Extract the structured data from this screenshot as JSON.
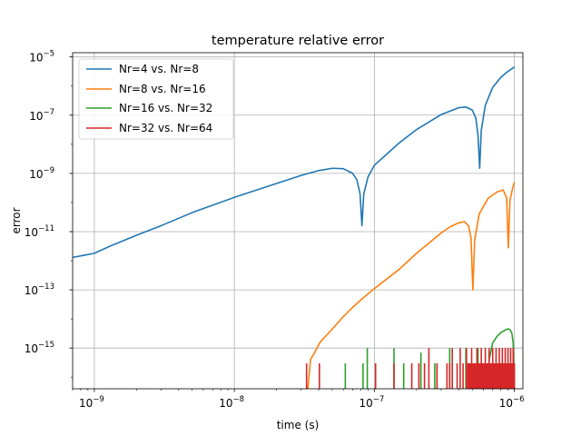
{
  "chart_data": {
    "type": "line",
    "title": "temperature relative error",
    "xlabel": "time (s)",
    "ylabel": "error",
    "xscale": "log",
    "yscale": "log",
    "xlim": [
      7e-10,
      1.15e-06
    ],
    "ylim": [
      4e-17,
      1.4e-05
    ],
    "grid": true,
    "legend_position": "upper left",
    "x_ticks": [
      {
        "value": 1e-09,
        "base": "10",
        "exp": "−9"
      },
      {
        "value": 1e-08,
        "base": "10",
        "exp": "−8"
      },
      {
        "value": 1e-07,
        "base": "10",
        "exp": "−7"
      },
      {
        "value": 1e-06,
        "base": "10",
        "exp": "−6"
      }
    ],
    "y_ticks": [
      {
        "value": 1e-15,
        "base": "10",
        "exp": "−15"
      },
      {
        "value": 1e-13,
        "base": "10",
        "exp": "−13"
      },
      {
        "value": 1e-11,
        "base": "10",
        "exp": "−11"
      },
      {
        "value": 1e-09,
        "base": "10",
        "exp": "−9"
      },
      {
        "value": 1e-07,
        "base": "10",
        "exp": "−7"
      },
      {
        "value": 1e-05,
        "base": "10",
        "exp": "−5"
      }
    ],
    "series": [
      {
        "name": "Nr=4 vs. Nr=8",
        "color": "#1f77b4",
        "points": [
          [
            7e-10,
            1.3e-12
          ],
          [
            8.5e-10,
            1.55e-12
          ],
          [
            1e-09,
            1.8e-12
          ],
          [
            1.3e-09,
            3.2e-12
          ],
          [
            2e-09,
            7.5e-12
          ],
          [
            3e-09,
            1.6e-11
          ],
          [
            5e-09,
            4.5e-11
          ],
          [
            1e-08,
            1.5e-10
          ],
          [
            2e-08,
            4.5e-10
          ],
          [
            3e-08,
            8.5e-10
          ],
          [
            4e-08,
            1.25e-09
          ],
          [
            5e-08,
            1.5e-09
          ],
          [
            6e-08,
            1.45e-09
          ],
          [
            7e-08,
            1e-09
          ],
          [
            7.5e-08,
            6e-10
          ],
          [
            7.9e-08,
            2e-10
          ],
          [
            8.15e-08,
            1.6e-11
          ],
          [
            8.4e-08,
            2e-10
          ],
          [
            9e-08,
            7.5e-10
          ],
          [
            1e-07,
            1.9e-09
          ],
          [
            1.5e-07,
            1.1e-08
          ],
          [
            2e-07,
            3.2e-08
          ],
          [
            3e-07,
            1.05e-07
          ],
          [
            4e-07,
            1.8e-07
          ],
          [
            4.5e-07,
            1.9e-07
          ],
          [
            5e-07,
            1.5e-07
          ],
          [
            5.3e-07,
            8e-08
          ],
          [
            5.5e-07,
            2e-08
          ],
          [
            5.65e-07,
            1.5e-09
          ],
          [
            5.8e-07,
            3e-08
          ],
          [
            6.2e-07,
            2.2e-07
          ],
          [
            7e-07,
            9e-07
          ],
          [
            8e-07,
            2e-06
          ],
          [
            9e-07,
            3.2e-06
          ],
          [
            1e-06,
            4.5e-06
          ]
        ]
      },
      {
        "name": "Nr=8 vs. Nr=16",
        "color": "#ff7f0e",
        "points": [
          [
            3.35e-08,
            4e-17
          ],
          [
            3.5e-08,
            4e-16
          ],
          [
            3.8e-08,
            8e-16
          ],
          [
            4.1e-08,
            1.6e-15
          ],
          [
            4.5e-08,
            2.6e-15
          ],
          [
            5e-08,
            4.5e-15
          ],
          [
            6e-08,
            1.2e-14
          ],
          [
            7e-08,
            2.5e-14
          ],
          [
            8e-08,
            4.5e-14
          ],
          [
            1e-07,
            1.1e-13
          ],
          [
            1.5e-07,
            5e-13
          ],
          [
            2e-07,
            1.8e-12
          ],
          [
            3e-07,
            9e-12
          ],
          [
            3.5e-07,
            1.5e-11
          ],
          [
            4e-07,
            2e-11
          ],
          [
            4.4e-07,
            2.2e-11
          ],
          [
            4.7e-07,
            1.6e-11
          ],
          [
            4.9e-07,
            6e-12
          ],
          [
            5.05e-07,
            1e-13
          ],
          [
            5.2e-07,
            5e-12
          ],
          [
            5.6e-07,
            4e-11
          ],
          [
            6.5e-07,
            1.4e-10
          ],
          [
            7.5e-07,
            2.3e-10
          ],
          [
            8.3e-07,
            2.7e-10
          ],
          [
            8.8e-07,
            1.5e-10
          ],
          [
            9.05e-07,
            2.8e-12
          ],
          [
            9.3e-07,
            1.2e-10
          ],
          [
            9.7e-07,
            3e-10
          ],
          [
            1e-06,
            5e-10
          ]
        ]
      },
      {
        "name": "Nr=16 vs. Nr=32",
        "color": "#2ca02c",
        "points": [
          [
            6.4e-07,
            4e-17
          ],
          [
            6.6e-07,
            4e-16
          ],
          [
            7e-07,
            1.5e-15
          ],
          [
            7.5e-07,
            2.5e-15
          ],
          [
            8e-07,
            3.4e-15
          ],
          [
            8.5e-07,
            4e-15
          ],
          [
            9e-07,
            4.6e-15
          ],
          [
            9.3e-07,
            4.3e-15
          ],
          [
            9.6e-07,
            3.2e-15
          ],
          [
            9.8e-07,
            1.5e-15
          ],
          [
            1e-06,
            4e-17
          ]
        ],
        "spikes": [
          [
            6.2e-08,
            3e-16
          ],
          [
            8.3e-08,
            3e-16
          ],
          [
            8.9e-08,
            1e-15
          ],
          [
            1.38e-07,
            1e-15
          ],
          [
            1.62e-07,
            3e-16
          ],
          [
            2.15e-07,
            7e-16
          ],
          [
            2.7e-07,
            3e-16
          ],
          [
            3.45e-07,
            1e-15
          ],
          [
            4.5e-07,
            1e-15
          ],
          [
            5.5e-07,
            1e-15
          ],
          [
            6.2e-07,
            3e-16
          ]
        ]
      },
      {
        "name": "Nr=32 vs. Nr=64",
        "color": "#d62728",
        "spikes": [
          [
            3.28e-08,
            3e-16
          ],
          [
            4.05e-08,
            3e-16
          ],
          [
            1.02e-07,
            3e-16
          ],
          [
            1.38e-07,
            3e-16
          ],
          [
            1.85e-07,
            3e-16
          ],
          [
            2.08e-07,
            3e-16
          ],
          [
            2.28e-07,
            3e-16
          ],
          [
            2.45e-07,
            1e-15
          ],
          [
            2.8e-07,
            3e-16
          ],
          [
            3.3e-07,
            3e-16
          ],
          [
            3.45e-07,
            3e-16
          ],
          [
            3.6e-07,
            1e-15
          ],
          [
            3.9e-07,
            3e-16
          ],
          [
            4.1e-07,
            1e-15
          ],
          [
            4.3e-07,
            3e-16
          ],
          [
            4.55e-07,
            1e-15
          ],
          [
            4.75e-07,
            3e-16
          ],
          [
            4.95e-07,
            1e-15
          ],
          [
            5.2e-07,
            3e-16
          ],
          [
            5.4e-07,
            1e-15
          ],
          [
            5.6e-07,
            3e-16
          ],
          [
            5.8e-07,
            1e-15
          ],
          [
            6e-07,
            3e-16
          ],
          [
            6.2e-07,
            1e-15
          ],
          [
            6.4e-07,
            3e-16
          ],
          [
            6.6e-07,
            1e-15
          ],
          [
            6.8e-07,
            3e-16
          ],
          [
            7e-07,
            1e-15
          ],
          [
            7.2e-07,
            3e-16
          ],
          [
            7.4e-07,
            1e-15
          ],
          [
            7.6e-07,
            3e-16
          ],
          [
            7.8e-07,
            1e-15
          ],
          [
            8e-07,
            3e-16
          ],
          [
            8.2e-07,
            1e-15
          ],
          [
            8.4e-07,
            3e-16
          ],
          [
            8.6e-07,
            1e-15
          ],
          [
            8.8e-07,
            3e-16
          ],
          [
            9e-07,
            1e-15
          ],
          [
            9.2e-07,
            3e-16
          ],
          [
            9.4e-07,
            1e-15
          ],
          [
            9.6e-07,
            3e-16
          ],
          [
            9.8e-07,
            1e-15
          ],
          [
            1e-06,
            3e-16
          ]
        ],
        "band": [
          4.6e-07,
          1e-06,
          3e-16
        ]
      }
    ]
  }
}
